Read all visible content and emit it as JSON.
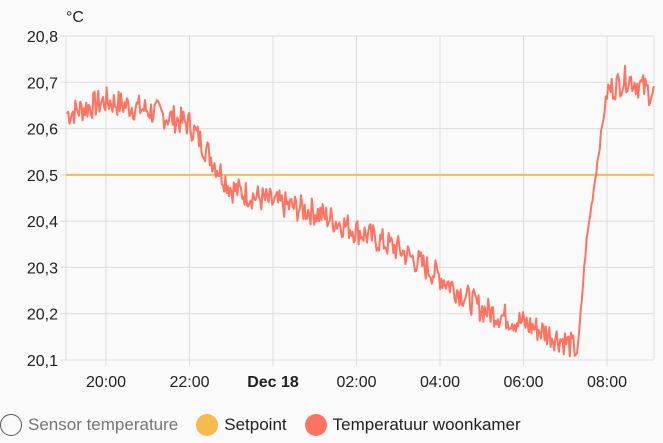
{
  "chart_data": {
    "type": "line",
    "title": "",
    "ylabel": "°C",
    "xlabel": "",
    "ylim": [
      20.1,
      20.8
    ],
    "yticks": [
      "20,8",
      "20,7",
      "20,6",
      "20,5",
      "20,4",
      "20,3",
      "20,2",
      "20,1"
    ],
    "xticks": [
      "20:00",
      "22:00",
      "Dec 18",
      "02:00",
      "04:00",
      "06:00",
      "08:00"
    ],
    "x_hours_from_20": [
      -1,
      0,
      1,
      2,
      3,
      4,
      5,
      6,
      7,
      8,
      9,
      10,
      10.5,
      11,
      11.3,
      11.5,
      12,
      12.5,
      13,
      13.3
    ],
    "series": [
      {
        "name": "Sensor temperature",
        "visible": false,
        "color": "#757575",
        "values": []
      },
      {
        "name": "Setpoint",
        "visible": true,
        "color": "#f4bc4c",
        "values": [
          20.5,
          20.5,
          20.5,
          20.5,
          20.5,
          20.5,
          20.5,
          20.5,
          20.5,
          20.5,
          20.5,
          20.5,
          20.5,
          20.5,
          20.5,
          20.5,
          20.5,
          20.5,
          20.5,
          20.5
        ]
      },
      {
        "name": "Temperatuur woonkamer",
        "visible": true,
        "color": "#ff7361",
        "values": [
          20.63,
          20.66,
          20.64,
          20.61,
          20.47,
          20.44,
          20.42,
          20.38,
          20.34,
          20.28,
          20.21,
          20.18,
          20.16,
          20.14,
          20.12,
          20.35,
          20.68,
          20.71,
          20.68,
          20.67
        ]
      }
    ],
    "grid": true,
    "legend_position": "bottom"
  },
  "legend": {
    "items": [
      {
        "label": "Sensor temperature",
        "color": "#ffffff",
        "hidden": true
      },
      {
        "label": "Setpoint",
        "color": "#f4bc4c",
        "hidden": false
      },
      {
        "label": "Temperatuur woonkamer",
        "color": "#ff7361",
        "hidden": false
      }
    ]
  }
}
